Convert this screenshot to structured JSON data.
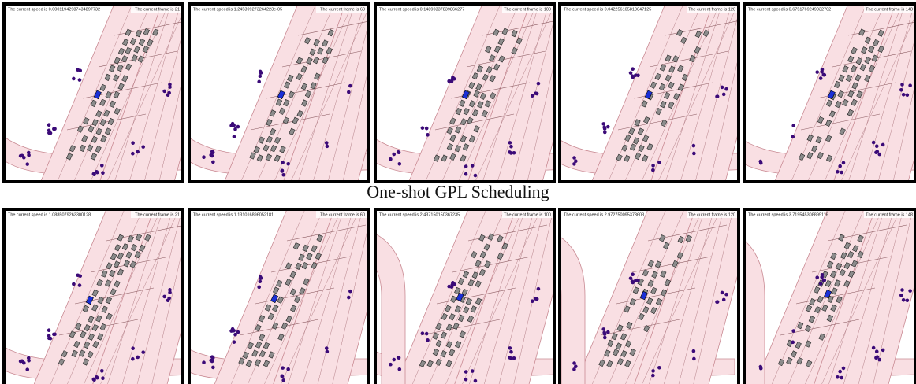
{
  "caption": "One-shot GPL Scheduling",
  "rows": [
    {
      "panels": [
        {
          "speed_text": "The current speed is 0.00011942987434897732",
          "frame_text": "The current frame is 21"
        },
        {
          "speed_text": "The current speed is 1.245399273264223e-05",
          "frame_text": "The current frame is 60"
        },
        {
          "speed_text": "The current speed is 0.14890337839866277",
          "frame_text": "The current frame is 100"
        },
        {
          "speed_text": "The current speed is 0.042256105813047125",
          "frame_text": "The current frame is 120"
        },
        {
          "speed_text": "The current speed is 0.6751769249032702",
          "frame_text": "The current frame is 148"
        }
      ]
    },
    {
      "panels": [
        {
          "speed_text": "The current speed is 1.0885079263300128",
          "frame_text": "The current frame is 21"
        },
        {
          "speed_text": "The current speed is 1.131016896052181",
          "frame_text": "The current frame is 60"
        },
        {
          "speed_text": "The current speed is 2.437150150367235",
          "frame_text": "The current frame is 100"
        },
        {
          "speed_text": "The current speed is 2.972750095373603",
          "frame_text": "The current frame is 120"
        },
        {
          "speed_text": "The current speed is 3.719545308899116",
          "frame_text": "The current frame is 148"
        }
      ]
    }
  ]
}
